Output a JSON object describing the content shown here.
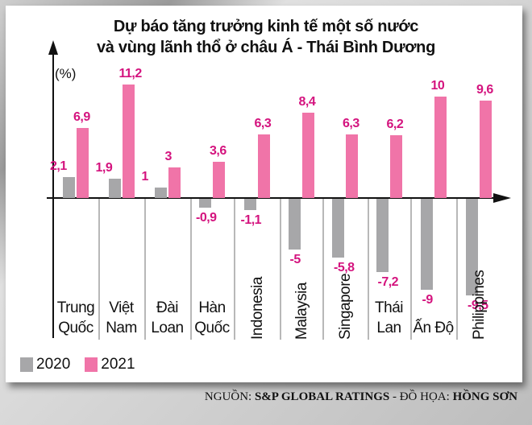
{
  "title_line1": "Dự báo tăng trưởng kinh tế một số nước",
  "title_line2": "và vùng lãnh thổ ở châu Á - Thái Bình Dương",
  "unit": "(%)",
  "legend": [
    {
      "label": "2020",
      "color": "#a7a7a9"
    },
    {
      "label": "2021",
      "color": "#f074a8"
    }
  ],
  "source": {
    "prefix": "NGUỒN: ",
    "source_name": "S&P GLOBAL RATINGS",
    "sep": " - ĐỒ HỌA: ",
    "author": "HỒNG SƠN"
  },
  "countries": [
    {
      "line1": "Trung",
      "line2": "Quốc",
      "v2020": "2,1",
      "v2021": "6,9"
    },
    {
      "line1": "Việt",
      "line2": "Nam",
      "v2020": "1,9",
      "v2021": "11,2"
    },
    {
      "line1": "Đài",
      "line2": "Loan",
      "v2020": "1",
      "v2021": "3"
    },
    {
      "line1": "Hàn",
      "line2": "Quốc",
      "v2020": "-0,9",
      "v2021": "3,6"
    },
    {
      "line1": "Indonesia",
      "v2020": "-1,1",
      "v2021": "6,3"
    },
    {
      "line1": "Malaysia",
      "v2020": "-5",
      "v2021": "8,4"
    },
    {
      "line1": "Singapore",
      "v2020": "-5,8",
      "v2021": "6,3"
    },
    {
      "line1": "Thái",
      "line2": "Lan",
      "v2020": "-7,2",
      "v2021": "6,2"
    },
    {
      "line1": "Ấn Độ",
      "v2020": "-9",
      "v2021": "10"
    },
    {
      "line1": "Philippines",
      "v2020": "-9,5",
      "v2021": "9,6"
    }
  ],
  "chart_data": {
    "type": "bar",
    "title": "Dự báo tăng trưởng kinh tế một số nước và vùng lãnh thổ ở châu Á - Thái Bình Dương",
    "xlabel": "",
    "ylabel": "(%)",
    "categories": [
      "Trung Quốc",
      "Việt Nam",
      "Đài Loan",
      "Hàn Quốc",
      "Indonesia",
      "Malaysia",
      "Singapore",
      "Thái Lan",
      "Ấn Độ",
      "Philippines"
    ],
    "series": [
      {
        "name": "2020",
        "color": "#a7a7a9",
        "values": [
          2.1,
          1.9,
          1.0,
          -0.9,
          -1.1,
          -5.0,
          -5.8,
          -7.2,
          -9.0,
          -9.5
        ]
      },
      {
        "name": "2021",
        "color": "#f074a8",
        "values": [
          6.9,
          11.2,
          3.0,
          3.6,
          6.3,
          8.4,
          6.3,
          6.2,
          10.0,
          9.6
        ]
      }
    ],
    "legend_position": "bottom-left",
    "grid": false,
    "ylim": [
      -10,
      12
    ]
  }
}
